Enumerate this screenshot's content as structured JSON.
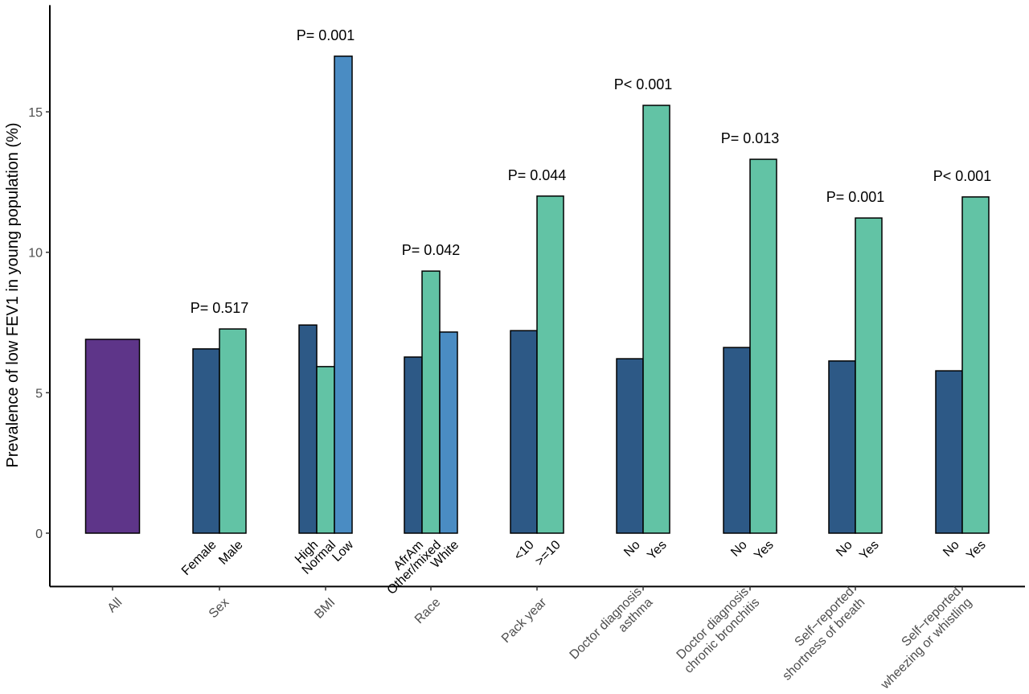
{
  "chart_data": {
    "type": "bar",
    "ylabel": "Prevalence of low FEV1 in young population (%)",
    "ylim": [
      -1.9,
      18.8
    ],
    "yticks": [
      0,
      5,
      10,
      15
    ],
    "grid": false,
    "colors": {
      "purple": "#5e3589",
      "dark_blue": "#2d5986",
      "green": "#62c3a5",
      "light_blue": "#4a8cc3"
    },
    "groups": [
      {
        "label": [
          "All"
        ],
        "p": "",
        "bars": [
          {
            "label": "",
            "value": 6.9,
            "color": "purple"
          }
        ]
      },
      {
        "label": [
          "Sex"
        ],
        "p": "P= 0.517",
        "bars": [
          {
            "label": "Female",
            "value": 6.56,
            "color": "dark_blue"
          },
          {
            "label": "Male",
            "value": 7.27,
            "color": "green"
          }
        ]
      },
      {
        "label": [
          "BMI"
        ],
        "p": "P= 0.001",
        "bars": [
          {
            "label": "High",
            "value": 7.41,
            "color": "dark_blue"
          },
          {
            "label": "Normal",
            "value": 5.93,
            "color": "green"
          },
          {
            "label": "Low",
            "value": 16.98,
            "color": "light_blue"
          }
        ]
      },
      {
        "label": [
          "Race"
        ],
        "p": "P= 0.042",
        "bars": [
          {
            "label": "AfrAm",
            "value": 6.27,
            "color": "dark_blue"
          },
          {
            "label": "Other/mixed",
            "value": 9.33,
            "color": "green"
          },
          {
            "label": "White",
            "value": 7.16,
            "color": "light_blue"
          }
        ]
      },
      {
        "label": [
          "Pack year"
        ],
        "p": "P= 0.044",
        "bars": [
          {
            "label": "<10",
            "value": 7.21,
            "color": "dark_blue"
          },
          {
            "label": ">=10",
            "value": 12.0,
            "color": "green"
          }
        ]
      },
      {
        "label": [
          "Doctor diagnosis",
          "asthma"
        ],
        "p": "P< 0.001",
        "bars": [
          {
            "label": "No",
            "value": 6.21,
            "color": "dark_blue"
          },
          {
            "label": "Yes",
            "value": 15.23,
            "color": "green"
          }
        ]
      },
      {
        "label": [
          "Doctor diagnosis",
          "chronic bronchitis"
        ],
        "p": "P= 0.013",
        "bars": [
          {
            "label": "No",
            "value": 6.61,
            "color": "dark_blue"
          },
          {
            "label": "Yes",
            "value": 13.31,
            "color": "green"
          }
        ]
      },
      {
        "label": [
          "Self−reported",
          "shortness of breath"
        ],
        "p": "P= 0.001",
        "bars": [
          {
            "label": "No",
            "value": 6.13,
            "color": "dark_blue"
          },
          {
            "label": "Yes",
            "value": 11.22,
            "color": "green"
          }
        ]
      },
      {
        "label": [
          "Self−reported",
          "wheezing or whistling"
        ],
        "p": "P< 0.001",
        "bars": [
          {
            "label": "No",
            "value": 5.78,
            "color": "dark_blue"
          },
          {
            "label": "Yes",
            "value": 11.97,
            "color": "green"
          }
        ]
      }
    ]
  }
}
